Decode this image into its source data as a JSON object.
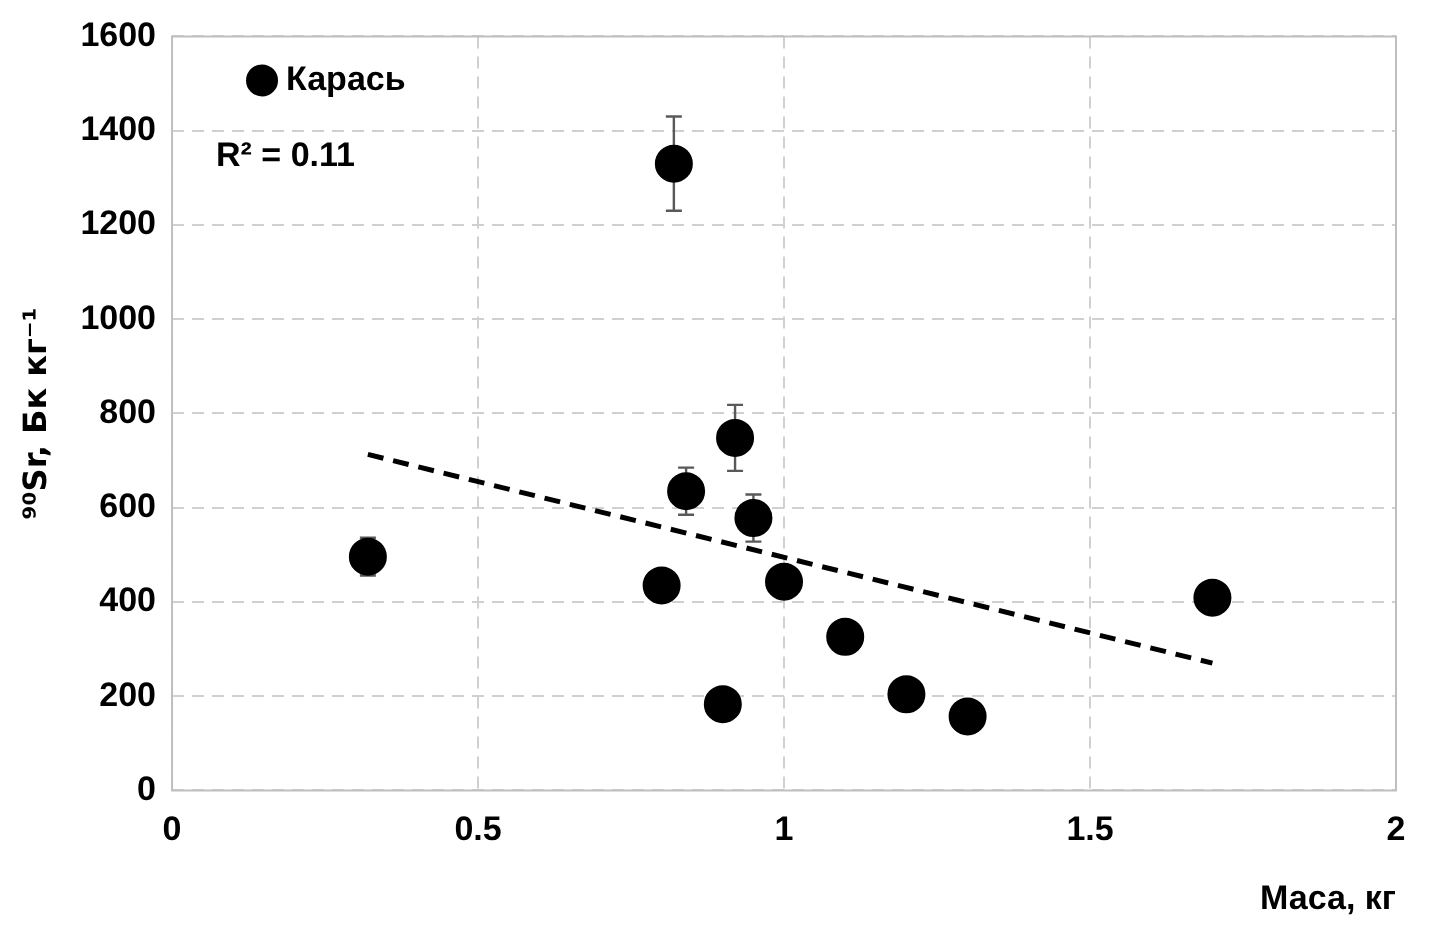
{
  "chart_data": {
    "type": "scatter",
    "xlabel": "Маса, кг",
    "ylabel": "⁹⁰Sr, Бк кг⁻¹",
    "xlim": [
      0,
      2
    ],
    "xticks": [
      0,
      0.5,
      1,
      1.5,
      2
    ],
    "ylim": [
      0,
      1600
    ],
    "yticks": [
      0,
      200,
      400,
      600,
      800,
      1000,
      1200,
      1400,
      1600
    ],
    "grid": true,
    "legend": "top left",
    "marker": "circle",
    "annotations": [
      "R² = 0.11"
    ],
    "series": [
      {
        "name": "Карась",
        "color": "#000000",
        "x": [
          0.32,
          0.8,
          0.82,
          0.84,
          0.9,
          0.92,
          0.95,
          1.0,
          1.1,
          1.2,
          1.3,
          1.7
        ],
        "values": [
          496,
          435,
          1330,
          635,
          183,
          748,
          578,
          443,
          326,
          204,
          157,
          409
        ],
        "errors": [
          40,
          30,
          100,
          50,
          null,
          70,
          50,
          30,
          null,
          null,
          null,
          30
        ]
      },
      {
        "type": "line",
        "color": "#000000",
        "line_style": "dashed",
        "marker": "none",
        "x": [
          0.32,
          1.7
        ],
        "values": [
          713,
          270
        ]
      }
    ]
  }
}
